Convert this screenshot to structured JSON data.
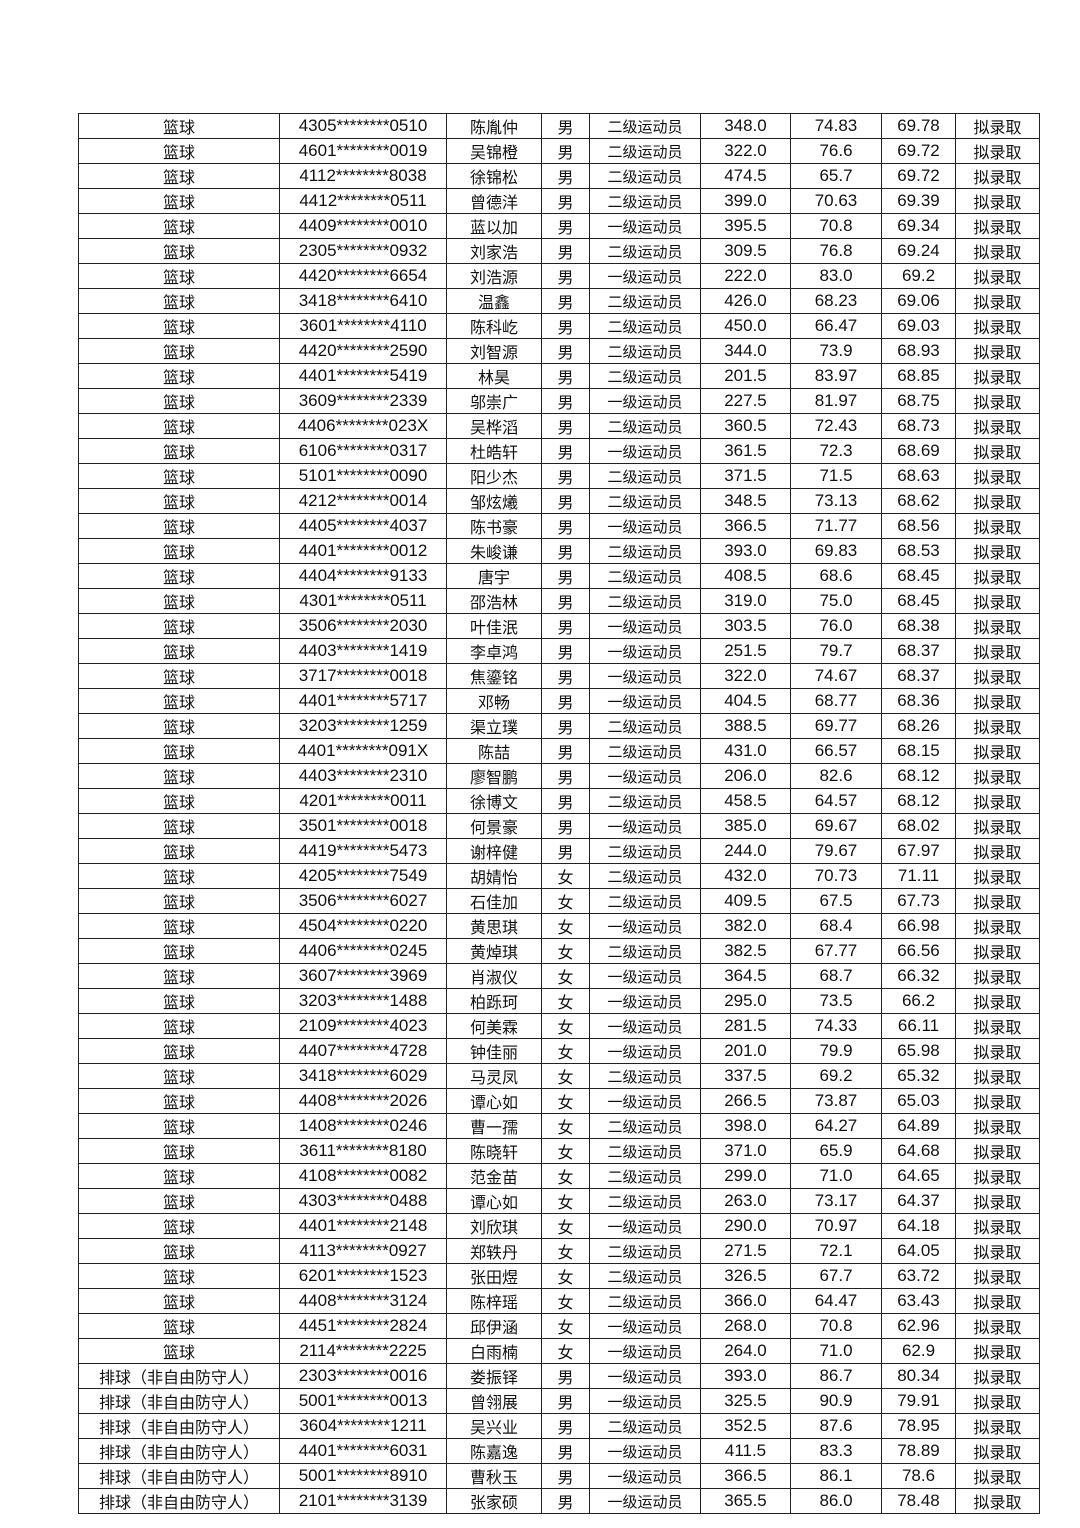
{
  "table": {
    "rows": [
      [
        "篮球",
        "4305********0510",
        "陈胤仲",
        "男",
        "二级运动员",
        "348.0",
        "74.83",
        "69.78",
        "拟录取"
      ],
      [
        "篮球",
        "4601********0019",
        "吴锦橙",
        "男",
        "二级运动员",
        "322.0",
        "76.6",
        "69.72",
        "拟录取"
      ],
      [
        "篮球",
        "4112********8038",
        "徐锦松",
        "男",
        "二级运动员",
        "474.5",
        "65.7",
        "69.72",
        "拟录取"
      ],
      [
        "篮球",
        "4412********0511",
        "曾德洋",
        "男",
        "二级运动员",
        "399.0",
        "70.63",
        "69.39",
        "拟录取"
      ],
      [
        "篮球",
        "4409********0010",
        "蓝以加",
        "男",
        "一级运动员",
        "395.5",
        "70.8",
        "69.34",
        "拟录取"
      ],
      [
        "篮球",
        "2305********0932",
        "刘家浩",
        "男",
        "二级运动员",
        "309.5",
        "76.8",
        "69.24",
        "拟录取"
      ],
      [
        "篮球",
        "4420********6654",
        "刘浩源",
        "男",
        "一级运动员",
        "222.0",
        "83.0",
        "69.2",
        "拟录取"
      ],
      [
        "篮球",
        "3418********6410",
        "温鑫",
        "男",
        "二级运动员",
        "426.0",
        "68.23",
        "69.06",
        "拟录取"
      ],
      [
        "篮球",
        "3601********4110",
        "陈科屹",
        "男",
        "二级运动员",
        "450.0",
        "66.47",
        "69.03",
        "拟录取"
      ],
      [
        "篮球",
        "4420********2590",
        "刘智源",
        "男",
        "二级运动员",
        "344.0",
        "73.9",
        "68.93",
        "拟录取"
      ],
      [
        "篮球",
        "4401********5419",
        "林昊",
        "男",
        "二级运动员",
        "201.5",
        "83.97",
        "68.85",
        "拟录取"
      ],
      [
        "篮球",
        "3609********2339",
        "邬崇广",
        "男",
        "一级运动员",
        "227.5",
        "81.97",
        "68.75",
        "拟录取"
      ],
      [
        "篮球",
        "4406********023X",
        "吴桦滔",
        "男",
        "二级运动员",
        "360.5",
        "72.43",
        "68.73",
        "拟录取"
      ],
      [
        "篮球",
        "6106********0317",
        "杜皓轩",
        "男",
        "一级运动员",
        "361.5",
        "72.3",
        "68.69",
        "拟录取"
      ],
      [
        "篮球",
        "5101********0090",
        "阳少杰",
        "男",
        "二级运动员",
        "371.5",
        "71.5",
        "68.63",
        "拟录取"
      ],
      [
        "篮球",
        "4212********0014",
        "邹炫爔",
        "男",
        "二级运动员",
        "348.5",
        "73.13",
        "68.62",
        "拟录取"
      ],
      [
        "篮球",
        "4405********4037",
        "陈书豪",
        "男",
        "一级运动员",
        "366.5",
        "71.77",
        "68.56",
        "拟录取"
      ],
      [
        "篮球",
        "4401********0012",
        "朱峻谦",
        "男",
        "二级运动员",
        "393.0",
        "69.83",
        "68.53",
        "拟录取"
      ],
      [
        "篮球",
        "4404********9133",
        "唐宇",
        "男",
        "二级运动员",
        "408.5",
        "68.6",
        "68.45",
        "拟录取"
      ],
      [
        "篮球",
        "4301********0511",
        "邵浩林",
        "男",
        "二级运动员",
        "319.0",
        "75.0",
        "68.45",
        "拟录取"
      ],
      [
        "篮球",
        "3506********2030",
        "叶佳泯",
        "男",
        "一级运动员",
        "303.5",
        "76.0",
        "68.38",
        "拟录取"
      ],
      [
        "篮球",
        "4403********1419",
        "李卓鸿",
        "男",
        "一级运动员",
        "251.5",
        "79.7",
        "68.37",
        "拟录取"
      ],
      [
        "篮球",
        "3717********0018",
        "焦鎏铭",
        "男",
        "一级运动员",
        "322.0",
        "74.67",
        "68.37",
        "拟录取"
      ],
      [
        "篮球",
        "4401********5717",
        "邓畅",
        "男",
        "一级运动员",
        "404.5",
        "68.77",
        "68.36",
        "拟录取"
      ],
      [
        "篮球",
        "3203********1259",
        "渠立璞",
        "男",
        "二级运动员",
        "388.5",
        "69.77",
        "68.26",
        "拟录取"
      ],
      [
        "篮球",
        "4401********091X",
        "陈喆",
        "男",
        "二级运动员",
        "431.0",
        "66.57",
        "68.15",
        "拟录取"
      ],
      [
        "篮球",
        "4403********2310",
        "廖智鹏",
        "男",
        "一级运动员",
        "206.0",
        "82.6",
        "68.12",
        "拟录取"
      ],
      [
        "篮球",
        "4201********0011",
        "徐博文",
        "男",
        "二级运动员",
        "458.5",
        "64.57",
        "68.12",
        "拟录取"
      ],
      [
        "篮球",
        "3501********0018",
        "何景豪",
        "男",
        "一级运动员",
        "385.0",
        "69.67",
        "68.02",
        "拟录取"
      ],
      [
        "篮球",
        "4419********5473",
        "谢梓健",
        "男",
        "二级运动员",
        "244.0",
        "79.67",
        "67.97",
        "拟录取"
      ],
      [
        "篮球",
        "4205********7549",
        "胡婧怡",
        "女",
        "二级运动员",
        "432.0",
        "70.73",
        "71.11",
        "拟录取"
      ],
      [
        "篮球",
        "3506********6027",
        "石佳加",
        "女",
        "二级运动员",
        "409.5",
        "67.5",
        "67.73",
        "拟录取"
      ],
      [
        "篮球",
        "4504********0220",
        "黄思琪",
        "女",
        "一级运动员",
        "382.0",
        "68.4",
        "66.98",
        "拟录取"
      ],
      [
        "篮球",
        "4406********0245",
        "黄焯琪",
        "女",
        "二级运动员",
        "382.5",
        "67.77",
        "66.56",
        "拟录取"
      ],
      [
        "篮球",
        "3607********3969",
        "肖淑仪",
        "女",
        "一级运动员",
        "364.5",
        "68.7",
        "66.32",
        "拟录取"
      ],
      [
        "篮球",
        "3203********1488",
        "柏跞珂",
        "女",
        "一级运动员",
        "295.0",
        "73.5",
        "66.2",
        "拟录取"
      ],
      [
        "篮球",
        "2109********4023",
        "何美霖",
        "女",
        "一级运动员",
        "281.5",
        "74.33",
        "66.11",
        "拟录取"
      ],
      [
        "篮球",
        "4407********4728",
        "钟佳丽",
        "女",
        "一级运动员",
        "201.0",
        "79.9",
        "65.98",
        "拟录取"
      ],
      [
        "篮球",
        "3418********6029",
        "马灵凤",
        "女",
        "二级运动员",
        "337.5",
        "69.2",
        "65.32",
        "拟录取"
      ],
      [
        "篮球",
        "4408********2026",
        "谭心如",
        "女",
        "一级运动员",
        "266.5",
        "73.87",
        "65.03",
        "拟录取"
      ],
      [
        "篮球",
        "1408********0246",
        "曹一孺",
        "女",
        "二级运动员",
        "398.0",
        "64.27",
        "64.89",
        "拟录取"
      ],
      [
        "篮球",
        "3611********8180",
        "陈晓轩",
        "女",
        "二级运动员",
        "371.0",
        "65.9",
        "64.68",
        "拟录取"
      ],
      [
        "篮球",
        "4108********0082",
        "范金苗",
        "女",
        "二级运动员",
        "299.0",
        "71.0",
        "64.65",
        "拟录取"
      ],
      [
        "篮球",
        "4303********0488",
        "谭心如",
        "女",
        "二级运动员",
        "263.0",
        "73.17",
        "64.37",
        "拟录取"
      ],
      [
        "篮球",
        "4401********2148",
        "刘欣琪",
        "女",
        "一级运动员",
        "290.0",
        "70.97",
        "64.18",
        "拟录取"
      ],
      [
        "篮球",
        "4113********0927",
        "郑轶丹",
        "女",
        "二级运动员",
        "271.5",
        "72.1",
        "64.05",
        "拟录取"
      ],
      [
        "篮球",
        "6201********1523",
        "张田煜",
        "女",
        "二级运动员",
        "326.5",
        "67.7",
        "63.72",
        "拟录取"
      ],
      [
        "篮球",
        "4408********3124",
        "陈梓瑶",
        "女",
        "二级运动员",
        "366.0",
        "64.47",
        "63.43",
        "拟录取"
      ],
      [
        "篮球",
        "4451********2824",
        "邱伊涵",
        "女",
        "一级运动员",
        "268.0",
        "70.8",
        "62.96",
        "拟录取"
      ],
      [
        "篮球",
        "2114********2225",
        "白雨楠",
        "女",
        "一级运动员",
        "264.0",
        "71.0",
        "62.9",
        "拟录取"
      ],
      [
        "排球（非自由防守人）",
        "2303********0016",
        "娄振铎",
        "男",
        "一级运动员",
        "393.0",
        "86.7",
        "80.34",
        "拟录取"
      ],
      [
        "排球（非自由防守人）",
        "5001********0013",
        "曾翎展",
        "男",
        "一级运动员",
        "325.5",
        "90.9",
        "79.91",
        "拟录取"
      ],
      [
        "排球（非自由防守人）",
        "3604********1211",
        "吴兴业",
        "男",
        "二级运动员",
        "352.5",
        "87.6",
        "78.95",
        "拟录取"
      ],
      [
        "排球（非自由防守人）",
        "4401********6031",
        "陈嘉逸",
        "男",
        "一级运动员",
        "411.5",
        "83.3",
        "78.89",
        "拟录取"
      ],
      [
        "排球（非自由防守人）",
        "5001********8910",
        "曹秋玉",
        "男",
        "一级运动员",
        "366.5",
        "86.1",
        "78.6",
        "拟录取"
      ],
      [
        "排球（非自由防守人）",
        "2101********3139",
        "张家硕",
        "男",
        "一级运动员",
        "365.5",
        "86.0",
        "78.48",
        "拟录取"
      ]
    ]
  }
}
